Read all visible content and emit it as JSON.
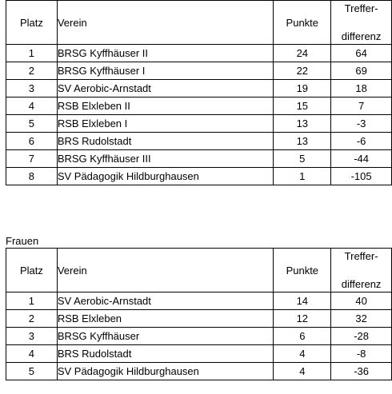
{
  "headers": {
    "platz": "Platz",
    "verein": "Verein",
    "punkte": "Punkte",
    "diff_line1": "Treffer-",
    "diff_line2": "differenz"
  },
  "table1": {
    "rows": [
      {
        "platz": "1",
        "verein": "BRSG Kyffhäuser II",
        "punkte": "24",
        "diff": "64"
      },
      {
        "platz": "2",
        "verein": "BRSG Kyffhäuser I",
        "punkte": "22",
        "diff": "69"
      },
      {
        "platz": "3",
        "verein": "SV Aerobic-Arnstadt",
        "punkte": "19",
        "diff": "18"
      },
      {
        "platz": "4",
        "verein": "RSB Elxleben II",
        "punkte": "15",
        "diff": "7"
      },
      {
        "platz": "5",
        "verein": "RSB Elxleben I",
        "punkte": "13",
        "diff": "-3"
      },
      {
        "platz": "6",
        "verein": "BRS Rudolstadt",
        "punkte": "13",
        "diff": "-6"
      },
      {
        "platz": "7",
        "verein": "BRSG Kyffhäuser III",
        "punkte": "5",
        "diff": "-44"
      },
      {
        "platz": "8",
        "verein": "SV Pädagogik Hildburghausen",
        "punkte": "1",
        "diff": "-105"
      }
    ]
  },
  "section2_title": "Frauen",
  "table2": {
    "rows": [
      {
        "platz": "1",
        "verein": "SV Aerobic-Arnstadt",
        "punkte": "14",
        "diff": "40"
      },
      {
        "platz": "2",
        "verein": "RSB Elxleben",
        "punkte": "12",
        "diff": "32"
      },
      {
        "platz": "3",
        "verein": "BRSG Kyffhäuser",
        "punkte": "6",
        "diff": "-28"
      },
      {
        "platz": "4",
        "verein": "BRS Rudolstadt",
        "punkte": "4",
        "diff": "-8"
      },
      {
        "platz": "5",
        "verein": "SV Pädagogik Hildburghausen",
        "punkte": "4",
        "diff": "-36"
      }
    ]
  }
}
